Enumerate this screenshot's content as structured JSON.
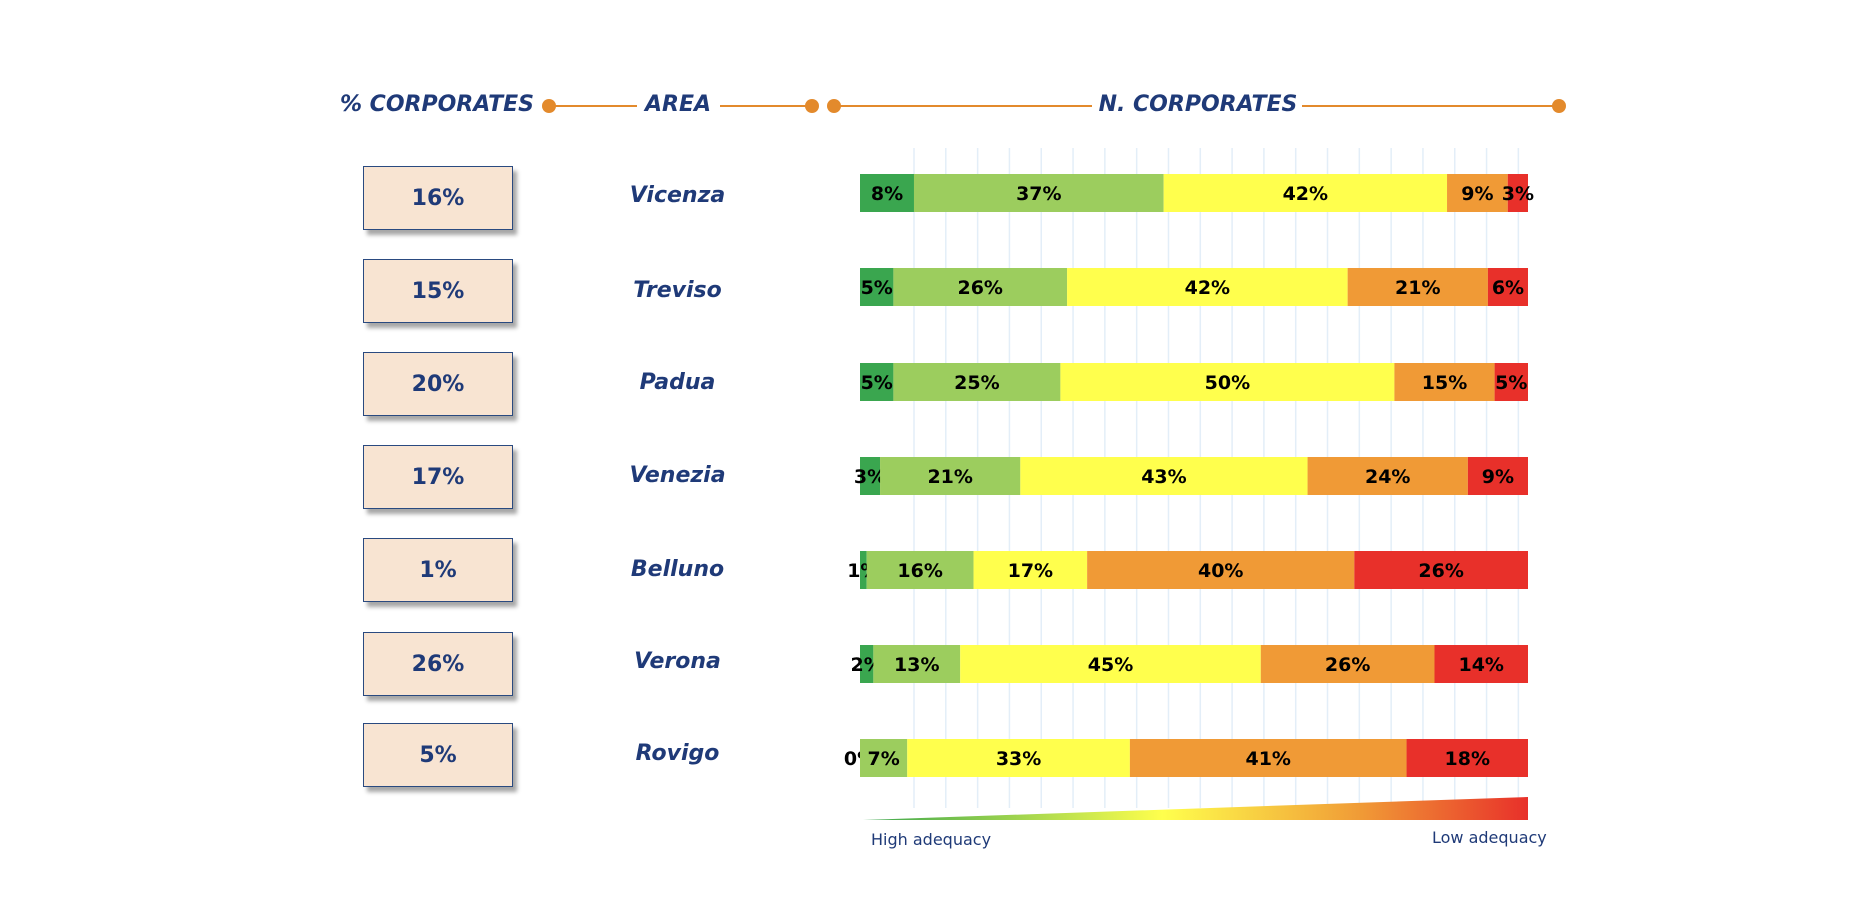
{
  "headers": {
    "pct": "% CORPORATES",
    "area": "AREA",
    "n": "N. CORPORATES"
  },
  "legend": {
    "high": "High adequacy",
    "low": "Low adequacy"
  },
  "colors": {
    "header_text": "#1f3a78",
    "header_line": "#e38a2c",
    "box_fill": "#f8e4d2",
    "segments": [
      "#3aa64f",
      "#9ccd5e",
      "#ffff4d",
      "#f09a36",
      "#e8302a"
    ]
  },
  "chart_data": {
    "type": "bar",
    "orientation": "horizontal",
    "stacked": true,
    "normalized": true,
    "categories": [
      "Vicenza",
      "Treviso",
      "Padua",
      "Venezia",
      "Belluno",
      "Verona",
      "Rovigo"
    ],
    "corporates_share": [
      "16%",
      "15%",
      "20%",
      "17%",
      "1%",
      "26%",
      "5%"
    ],
    "series": [
      {
        "color": "#3aa64f",
        "values": [
          8,
          5,
          5,
          3,
          1,
          2,
          0
        ]
      },
      {
        "color": "#9ccd5e",
        "values": [
          37,
          26,
          25,
          21,
          16,
          13,
          7
        ]
      },
      {
        "color": "#ffff4d",
        "values": [
          42,
          42,
          50,
          43,
          17,
          45,
          33
        ]
      },
      {
        "color": "#f09a36",
        "values": [
          9,
          21,
          15,
          24,
          40,
          26,
          41
        ]
      },
      {
        "color": "#e8302a",
        "values": [
          3,
          6,
          5,
          9,
          26,
          14,
          18
        ]
      }
    ],
    "xlim": [
      0,
      100
    ],
    "grid": true,
    "legend": "gradient-bottom"
  }
}
